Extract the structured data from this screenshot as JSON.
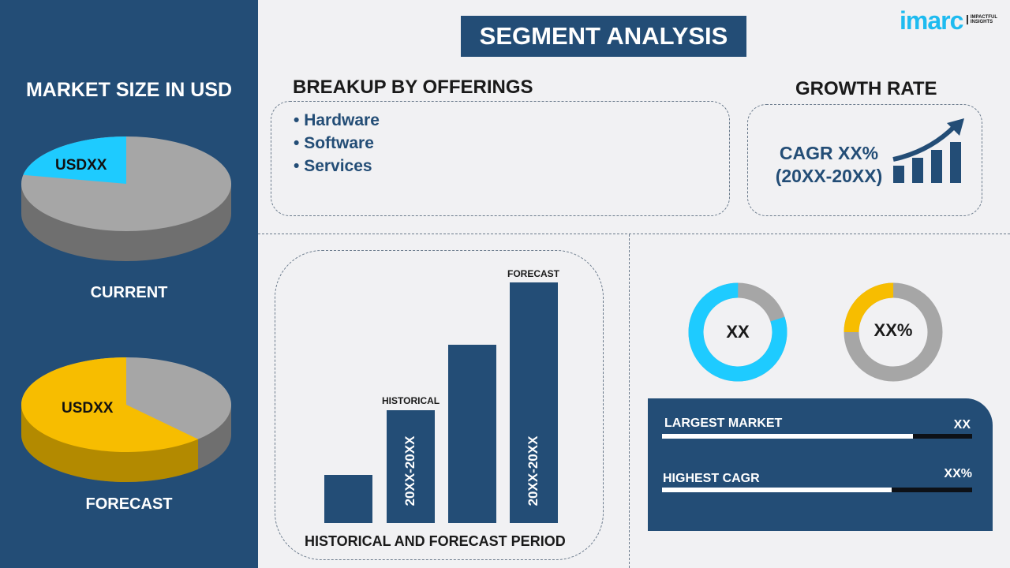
{
  "title": "SEGMENT ANALYSIS",
  "logo": {
    "text": "imarc",
    "tagline": "IMPACTFUL INSIGHTS",
    "color": "#1ebbf0"
  },
  "colors": {
    "navy": "#234d76",
    "cyan": "#1ecbff",
    "yellow": "#f7bd00",
    "gray": "#a6a6a6"
  },
  "market_size": {
    "heading": "MARKET SIZE IN USD",
    "current": {
      "label": "CURRENT",
      "value": "USDXX",
      "share": 0.22
    },
    "forecast": {
      "label": "FORECAST",
      "value": "USDXX",
      "share": 0.62
    }
  },
  "offerings": {
    "heading": "BREAKUP BY OFFERINGS",
    "items": [
      "Hardware",
      "Software",
      "Services"
    ]
  },
  "growth": {
    "heading": "GROWTH RATE",
    "cagr": "CAGR XX%",
    "period": "(20XX-20XX)",
    "icon": "growth-chart-arrow-icon"
  },
  "period_chart": {
    "caption": "HISTORICAL AND FORECAST PERIOD",
    "historical_label": "HISTORICAL",
    "forecast_label": "FORECAST",
    "historical_range": "20XX-20XX",
    "forecast_range": "20XX-20XX",
    "relative_heights": [
      0.2,
      0.47,
      0.74,
      1.0
    ]
  },
  "donuts": [
    {
      "value": "XX",
      "share": 0.8,
      "color": "#1ecbff"
    },
    {
      "value": "XX%",
      "share": 0.25,
      "color": "#f7bd00"
    }
  ],
  "stats": [
    {
      "label": "LARGEST MARKET",
      "value": "XX",
      "fill": 0.81
    },
    {
      "label": "HIGHEST CAGR",
      "value": "XX%",
      "fill": 0.74
    }
  ]
}
